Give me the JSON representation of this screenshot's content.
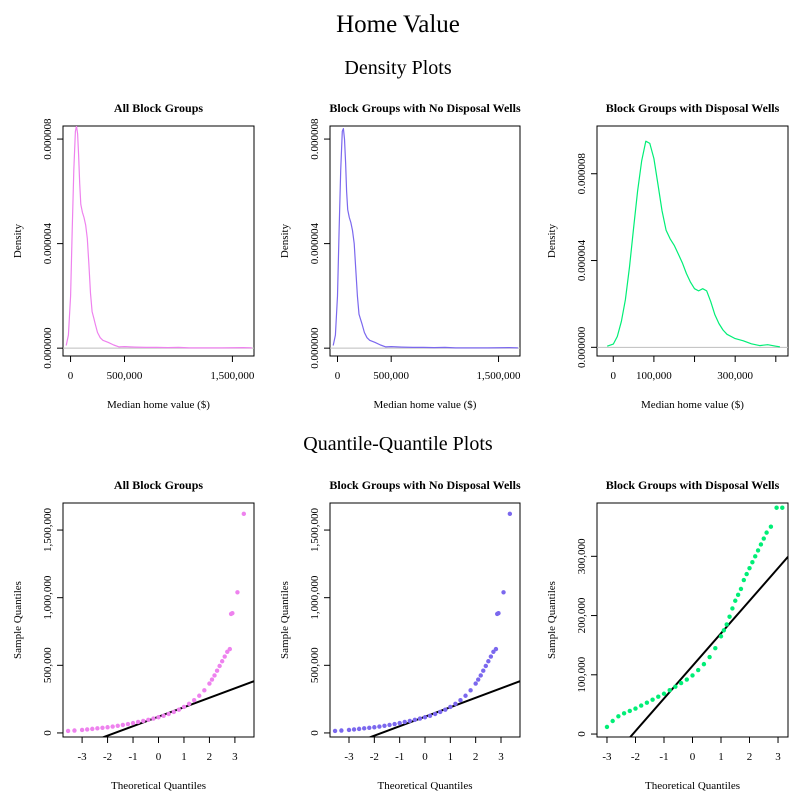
{
  "title": "Home Value",
  "section_density": "Density Plots",
  "section_qq": "Quantile-Quantile Plots",
  "colors": {
    "all": "#ee82ee",
    "no_wells": "#7b68ee",
    "wells": "#00ee76",
    "ref_line": "#000000",
    "baseline": "#bebebe"
  },
  "chart_data": [
    {
      "type": "line",
      "title": "All Block Groups",
      "xlabel": "Median home value ($)",
      "ylabel": "Density",
      "color": "#ee82ee",
      "xlim": [
        -70000,
        1700000
      ],
      "ylim": [
        -3e-07,
        8.5e-06
      ],
      "xticks": [
        0,
        500000,
        1500000
      ],
      "xtick_labels": [
        "0",
        "500,000",
        "1,500,000"
      ],
      "yticks": [
        0,
        4e-06,
        8e-06
      ],
      "ytick_labels": [
        "0.000000",
        "0.000004",
        "0.000008"
      ],
      "x": [
        -40000,
        -20000,
        0,
        15000,
        30000,
        45000,
        55000,
        65000,
        75000,
        85000,
        95000,
        110000,
        125000,
        140000,
        155000,
        170000,
        185000,
        200000,
        215000,
        230000,
        250000,
        275000,
        300000,
        350000,
        400000,
        450000,
        500000,
        600000,
        700000,
        800000,
        900000,
        1000000,
        1100000,
        1200000,
        1400000,
        1600000,
        1680000
      ],
      "y": [
        1e-07,
        5e-07,
        2e-06,
        4.5e-06,
        6.8e-06,
        8.3e-06,
        8.5e-06,
        8.2e-06,
        7.4e-06,
        6.3e-06,
        5.5e-06,
        5.2e-06,
        5e-06,
        4.7e-06,
        4.2e-06,
        3.2e-06,
        2.1e-06,
        1.4e-06,
        1.15e-06,
        9e-07,
        6e-07,
        4e-07,
        3e-07,
        2.2e-07,
        1.2e-07,
        5e-08,
        6e-08,
        4e-08,
        3e-08,
        3e-08,
        2e-08,
        3e-08,
        1e-08,
        1e-08,
        1e-08,
        2e-08,
        1e-08
      ]
    },
    {
      "type": "line",
      "title": "Block Groups with No Disposal Wells",
      "xlabel": "Median home value ($)",
      "ylabel": "Density",
      "color": "#7b68ee",
      "xlim": [
        -70000,
        1700000
      ],
      "ylim": [
        -3e-07,
        8.5e-06
      ],
      "xticks": [
        0,
        500000,
        1500000
      ],
      "xtick_labels": [
        "0",
        "500,000",
        "1,500,000"
      ],
      "yticks": [
        0,
        4e-06,
        8e-06
      ],
      "ytick_labels": [
        "0.000000",
        "0.000004",
        "0.000008"
      ],
      "x": [
        -40000,
        -20000,
        0,
        15000,
        30000,
        45000,
        55000,
        65000,
        75000,
        85000,
        95000,
        110000,
        125000,
        140000,
        155000,
        170000,
        185000,
        200000,
        215000,
        230000,
        250000,
        275000,
        300000,
        350000,
        400000,
        450000,
        500000,
        600000,
        700000,
        800000,
        900000,
        1000000,
        1100000,
        1200000,
        1400000,
        1600000,
        1680000
      ],
      "y": [
        1e-07,
        5e-07,
        2e-06,
        4.5e-06,
        6.8e-06,
        8.3e-06,
        8.4e-06,
        8e-06,
        7.1e-06,
        6e-06,
        5.3e-06,
        5e-06,
        4.8e-06,
        4.5e-06,
        4e-06,
        3e-06,
        2e-06,
        1.3e-06,
        1.1e-06,
        9e-07,
        6e-07,
        4e-07,
        3e-07,
        2.2e-07,
        1.2e-07,
        5e-08,
        6e-08,
        4e-08,
        3e-08,
        3e-08,
        2e-08,
        3e-08,
        1e-08,
        1e-08,
        1e-08,
        2e-08,
        1e-08
      ]
    },
    {
      "type": "line",
      "title": "Block Groups with Disposal Wells",
      "xlabel": "Median home value ($)",
      "ylabel": "Density",
      "color": "#00ee76",
      "xlim": [
        -40000,
        430000
      ],
      "ylim": [
        -4e-07,
        1.02e-05
      ],
      "xticks": [
        0,
        100000,
        200000,
        300000,
        400000
      ],
      "xtick_labels": [
        "0",
        "100,000",
        "",
        "300,000",
        ""
      ],
      "yticks": [
        0,
        4e-06,
        8e-06
      ],
      "ytick_labels": [
        "0.000000",
        "0.000004",
        "0.000008"
      ],
      "x": [
        -15000,
        0,
        10000,
        20000,
        30000,
        40000,
        50000,
        60000,
        70000,
        80000,
        90000,
        100000,
        110000,
        120000,
        130000,
        140000,
        150000,
        160000,
        170000,
        180000,
        190000,
        200000,
        210000,
        220000,
        230000,
        240000,
        250000,
        260000,
        270000,
        280000,
        300000,
        320000,
        340000,
        360000,
        380000,
        400000,
        410000
      ],
      "y": [
        5e-08,
        1.5e-07,
        5e-07,
        1.2e-06,
        2.2e-06,
        3.7e-06,
        5.5e-06,
        7.2e-06,
        8.6e-06,
        9.5e-06,
        9.4e-06,
        8.7e-06,
        7.5e-06,
        6.3e-06,
        5.4e-06,
        5e-06,
        4.7e-06,
        4.3e-06,
        3.9e-06,
        3.4e-06,
        3e-06,
        2.7e-06,
        2.6e-06,
        2.7e-06,
        2.6e-06,
        2.1e-06,
        1.5e-06,
        1.1e-06,
        8e-07,
        6e-07,
        4e-07,
        3e-07,
        1.6e-07,
        8e-08,
        1.2e-07,
        5e-08,
        2e-08
      ]
    },
    {
      "type": "scatter",
      "title": "All Block Groups",
      "xlabel": "Theoretical Quantiles",
      "ylabel": "Sample Quantiles",
      "color": "#ee82ee",
      "xlim": [
        -3.75,
        3.75
      ],
      "ylim": [
        -30000,
        1700000
      ],
      "xticks": [
        -3,
        -2,
        -1,
        0,
        1,
        2,
        3
      ],
      "xtick_labels": [
        "-3",
        "-2",
        "-1",
        "0",
        "1",
        "2",
        "3"
      ],
      "yticks": [
        0,
        500000,
        1000000,
        1500000
      ],
      "ytick_labels": [
        "0",
        "500,000",
        "1,000,000",
        "1,500,000"
      ],
      "ref_line": {
        "intercept": 120000,
        "slope": 70000
      },
      "x": [
        -3.55,
        -3.3,
        -3.0,
        -2.8,
        -2.6,
        -2.4,
        -2.2,
        -2.0,
        -1.8,
        -1.6,
        -1.4,
        -1.2,
        -1.0,
        -0.8,
        -0.6,
        -0.4,
        -0.2,
        0.0,
        0.2,
        0.4,
        0.6,
        0.8,
        1.0,
        1.2,
        1.4,
        1.6,
        1.8,
        2.0,
        2.1,
        2.2,
        2.3,
        2.4,
        2.5,
        2.6,
        2.7,
        2.8,
        2.85,
        2.9,
        3.1,
        3.35
      ],
      "y": [
        15000,
        18000,
        22000,
        26000,
        30000,
        34000,
        38000,
        42000,
        47000,
        53000,
        59000,
        66000,
        73000,
        81000,
        89000,
        97000,
        106000,
        116000,
        127000,
        140000,
        155000,
        172000,
        192000,
        215000,
        242000,
        275000,
        315000,
        365000,
        395000,
        425000,
        460000,
        495000,
        530000,
        565000,
        600000,
        620000,
        880000,
        885000,
        1040000,
        1620000
      ]
    },
    {
      "type": "scatter",
      "title": "Block Groups with No Disposal Wells",
      "xlabel": "Theoretical Quantiles",
      "ylabel": "Sample Quantiles",
      "color": "#7b68ee",
      "xlim": [
        -3.75,
        3.75
      ],
      "ylim": [
        -30000,
        1700000
      ],
      "xticks": [
        -3,
        -2,
        -1,
        0,
        1,
        2,
        3
      ],
      "xtick_labels": [
        "-3",
        "-2",
        "-1",
        "0",
        "1",
        "2",
        "3"
      ],
      "yticks": [
        0,
        500000,
        1000000,
        1500000
      ],
      "ytick_labels": [
        "0",
        "500,000",
        "1,000,000",
        "1,500,000"
      ],
      "ref_line": {
        "intercept": 120000,
        "slope": 70000
      },
      "x": [
        -3.55,
        -3.3,
        -3.0,
        -2.8,
        -2.6,
        -2.4,
        -2.2,
        -2.0,
        -1.8,
        -1.6,
        -1.4,
        -1.2,
        -1.0,
        -0.8,
        -0.6,
        -0.4,
        -0.2,
        0.0,
        0.2,
        0.4,
        0.6,
        0.8,
        1.0,
        1.2,
        1.4,
        1.6,
        1.8,
        2.0,
        2.1,
        2.2,
        2.3,
        2.4,
        2.5,
        2.6,
        2.7,
        2.8,
        2.85,
        2.9,
        3.1,
        3.35
      ],
      "y": [
        15000,
        18000,
        22000,
        26000,
        30000,
        34000,
        38000,
        42000,
        47000,
        53000,
        59000,
        66000,
        73000,
        81000,
        89000,
        97000,
        106000,
        116000,
        127000,
        140000,
        155000,
        172000,
        192000,
        215000,
        242000,
        275000,
        315000,
        365000,
        395000,
        425000,
        460000,
        495000,
        530000,
        565000,
        600000,
        620000,
        880000,
        885000,
        1040000,
        1620000
      ]
    },
    {
      "type": "scatter",
      "title": "Block Groups with Disposal Wells",
      "xlabel": "Theoretical Quantiles",
      "ylabel": "Sample Quantiles",
      "color": "#00ee76",
      "xlim": [
        -3.35,
        3.35
      ],
      "ylim": [
        -5000,
        390000
      ],
      "xticks": [
        -3,
        -2,
        -1,
        0,
        1,
        2,
        3
      ],
      "xtick_labels": [
        "-3",
        "-2",
        "-1",
        "0",
        "1",
        "2",
        "3"
      ],
      "yticks": [
        0,
        100000,
        200000,
        300000
      ],
      "ytick_labels": [
        "0",
        "100,000",
        "200,000",
        "300,000"
      ],
      "ref_line": {
        "intercept": 115000,
        "slope": 55000
      },
      "x": [
        -3.0,
        -2.8,
        -2.6,
        -2.4,
        -2.2,
        -2.0,
        -1.8,
        -1.6,
        -1.4,
        -1.2,
        -1.0,
        -0.8,
        -0.6,
        -0.4,
        -0.2,
        0.0,
        0.2,
        0.4,
        0.6,
        0.8,
        1.0,
        1.1,
        1.2,
        1.3,
        1.4,
        1.5,
        1.6,
        1.7,
        1.8,
        1.9,
        2.0,
        2.1,
        2.2,
        2.3,
        2.4,
        2.5,
        2.6,
        2.75,
        2.95,
        3.15
      ],
      "y": [
        12000,
        22000,
        30000,
        35000,
        39000,
        43000,
        48000,
        53000,
        58000,
        63000,
        68000,
        74000,
        80000,
        86000,
        92000,
        99000,
        108000,
        118000,
        130000,
        145000,
        165000,
        175000,
        185000,
        198000,
        212000,
        225000,
        235000,
        245000,
        260000,
        270000,
        280000,
        290000,
        300000,
        310000,
        320000,
        330000,
        340000,
        350000,
        382000,
        382000
      ]
    }
  ]
}
